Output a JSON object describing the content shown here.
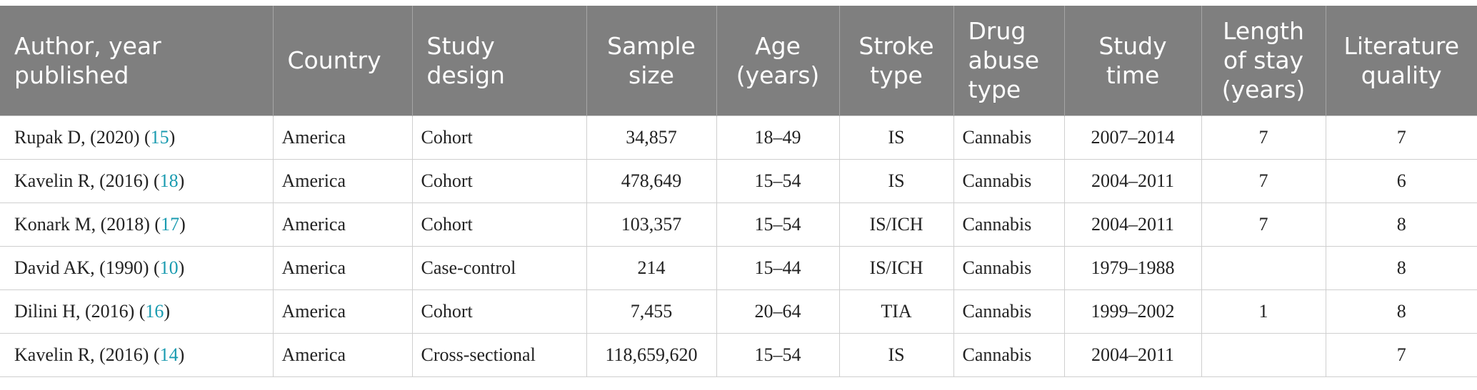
{
  "table": {
    "headers": [
      "Author, year published",
      "Country",
      "Study design",
      "Sample size",
      "Age (years)",
      "Stroke type",
      "Drug abuse type",
      "Study time",
      "Length of stay (years)",
      "Literature quality"
    ],
    "rows": [
      {
        "author": "Rupak D, (2020) (",
        "ref": "15",
        "close": ")",
        "country": "America",
        "design": "Cohort",
        "sample": "34,857",
        "age": "18–49",
        "stroke": "IS",
        "drug": "Cannabis",
        "time": "2007–2014",
        "stay": "7",
        "quality": "7"
      },
      {
        "author": "Kavelin R, (2016) (",
        "ref": "18",
        "close": ")",
        "country": "America",
        "design": "Cohort",
        "sample": "478,649",
        "age": "15–54",
        "stroke": "IS",
        "drug": "Cannabis",
        "time": "2004–2011",
        "stay": "7",
        "quality": "6"
      },
      {
        "author": "Konark M, (2018) (",
        "ref": "17",
        "close": ")",
        "country": "America",
        "design": "Cohort",
        "sample": "103,357",
        "age": "15–54",
        "stroke": "IS/ICH",
        "drug": "Cannabis",
        "time": "2004–2011",
        "stay": "7",
        "quality": "8"
      },
      {
        "author": "David AK, (1990) (",
        "ref": "10",
        "close": ")",
        "country": "America",
        "design": "Case-control",
        "sample": "214",
        "age": "15–44",
        "stroke": "IS/ICH",
        "drug": "Cannabis",
        "time": "1979–1988",
        "stay": "",
        "quality": "8"
      },
      {
        "author": "Dilini H, (2016) (",
        "ref": "16",
        "close": ")",
        "country": "America",
        "design": "Cohort",
        "sample": "7,455",
        "age": "20–64",
        "stroke": "TIA",
        "drug": "Cannabis",
        "time": "1999–2002",
        "stay": "1",
        "quality": "8"
      },
      {
        "author": "Kavelin R, (2016) (",
        "ref": "14",
        "close": ")",
        "country": "America",
        "design": "Cross-sectional",
        "sample": "118,659,620",
        "age": "15–54",
        "stroke": "IS",
        "drug": "Cannabis",
        "time": "2004–2011",
        "stay": "",
        "quality": "7"
      }
    ]
  }
}
